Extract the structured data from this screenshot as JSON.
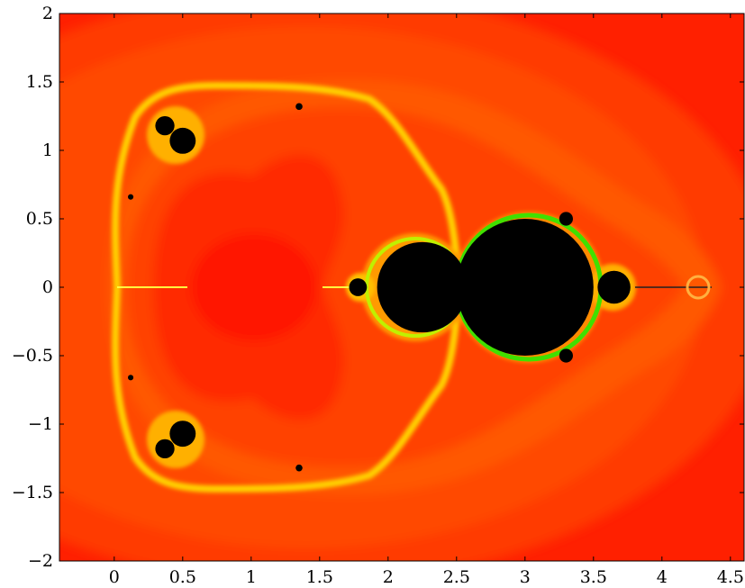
{
  "chart_data": {
    "type": "heatmap",
    "title": "",
    "xlabel": "",
    "ylabel": "",
    "xlim": [
      -0.4,
      4.6
    ],
    "ylim": [
      -2,
      2
    ],
    "x_ticks": [
      0,
      0.5,
      1,
      1.5,
      2,
      2.5,
      3,
      3.5,
      4,
      4.5
    ],
    "y_ticks": [
      -2,
      -1.5,
      -1,
      -0.5,
      0,
      0.5,
      1,
      1.5,
      2
    ],
    "x_tick_labels": [
      "0",
      "0.5",
      "1",
      "1.5",
      "2",
      "2.5",
      "3",
      "3.5",
      "4",
      "4.5"
    ],
    "y_tick_labels": [
      "−2",
      "−1.5",
      "−1",
      "−0.5",
      "0",
      "0.5",
      "1",
      "1.5",
      "2"
    ],
    "grid": false,
    "legend": "none",
    "colormap": [
      "#000000",
      "#ff1a00",
      "#ff5a00",
      "#ff9a00",
      "#ffd200",
      "#ffff00",
      "#00e000"
    ],
    "fractal_components": [
      {
        "shape": "disk",
        "cx": 3.0,
        "cy": 0.0,
        "r": 0.5
      },
      {
        "shape": "disk",
        "cx": 2.25,
        "cy": 0.0,
        "r": 0.33
      },
      {
        "shape": "disk",
        "cx": 1.78,
        "cy": 0.0,
        "r": 0.065
      },
      {
        "shape": "disk",
        "cx": 3.65,
        "cy": 0.0,
        "r": 0.12
      },
      {
        "shape": "disk",
        "cx": 3.3,
        "cy": 0.5,
        "r": 0.05
      },
      {
        "shape": "disk",
        "cx": 3.3,
        "cy": -0.5,
        "r": 0.05
      },
      {
        "shape": "disk",
        "cx": 0.5,
        "cy": 1.07,
        "r": 0.095
      },
      {
        "shape": "disk",
        "cx": 0.37,
        "cy": 1.18,
        "r": 0.07
      },
      {
        "shape": "disk",
        "cx": 0.5,
        "cy": -1.07,
        "r": 0.095
      },
      {
        "shape": "disk",
        "cx": 0.37,
        "cy": -1.18,
        "r": 0.07
      },
      {
        "shape": "disk",
        "cx": 1.35,
        "cy": 1.32,
        "r": 0.025
      },
      {
        "shape": "disk",
        "cx": 1.35,
        "cy": -1.32,
        "r": 0.025
      },
      {
        "shape": "disk",
        "cx": 0.12,
        "cy": 0.66,
        "r": 0.02
      },
      {
        "shape": "disk",
        "cx": 0.12,
        "cy": -0.66,
        "r": 0.02
      }
    ]
  }
}
